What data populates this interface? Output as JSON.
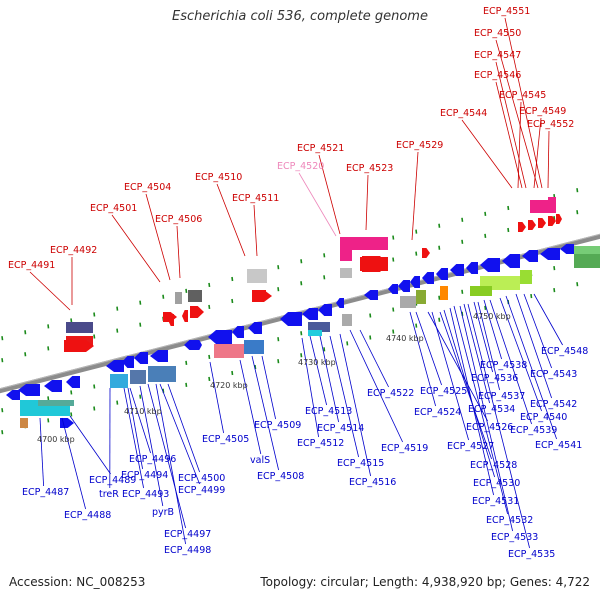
{
  "title": "Escherichia coli 536, complete genome",
  "footer": {
    "accession": "Accession: NC_008253",
    "stats": "Topology: circular; Length: 4,938,920 bp; Genes: 4,722"
  },
  "colors": {
    "backbone": "#8c8c8c",
    "upper_label": "#cc0000",
    "upper_label_alt": "#ee88bb",
    "lower_label": "#0000cc",
    "tick": "#1a8a1a"
  },
  "scale_labels": [
    "4700 kbp",
    "4710 kbp",
    "4720 kbp",
    "4730 kbp",
    "4740 kbp",
    "4750 kbp"
  ],
  "upper_labels": [
    {
      "text": "ECP_4491"
    },
    {
      "text": "ECP_4492"
    },
    {
      "text": "ECP_4501"
    },
    {
      "text": "ECP_4504"
    },
    {
      "text": "ECP_4506"
    },
    {
      "text": "ECP_4510"
    },
    {
      "text": "ECP_4511"
    },
    {
      "text": "ECP_4520",
      "alt": true
    },
    {
      "text": "ECP_4521"
    },
    {
      "text": "ECP_4523"
    },
    {
      "text": "ECP_4529"
    },
    {
      "text": "ECP_4544"
    },
    {
      "text": "ECP_4545"
    },
    {
      "text": "ECP_4546"
    },
    {
      "text": "ECP_4547"
    },
    {
      "text": "ECP_4549"
    },
    {
      "text": "ECP_4550"
    },
    {
      "text": "ECP_4551"
    },
    {
      "text": "ECP_4552"
    }
  ],
  "lower_labels": [
    {
      "text": "ECP_4487"
    },
    {
      "text": "ECP_4488"
    },
    {
      "text": "ECP_4489"
    },
    {
      "text": "treR"
    },
    {
      "text": "ECP_4493"
    },
    {
      "text": "ECP_4494"
    },
    {
      "text": "ECP_4496"
    },
    {
      "text": "pyrB"
    },
    {
      "text": "ECP_4497"
    },
    {
      "text": "ECP_4498"
    },
    {
      "text": "ECP_4499"
    },
    {
      "text": "ECP_4500"
    },
    {
      "text": "ECP_4505"
    },
    {
      "text": "valS"
    },
    {
      "text": "ECP_4508"
    },
    {
      "text": "ECP_4509"
    },
    {
      "text": "ECP_4512"
    },
    {
      "text": "ECP_4513"
    },
    {
      "text": "ECP_4514"
    },
    {
      "text": "ECP_4515"
    },
    {
      "text": "ECP_4516"
    },
    {
      "text": "ECP_4519"
    },
    {
      "text": "ECP_4522"
    },
    {
      "text": "ECP_4524"
    },
    {
      "text": "ECP_4525"
    },
    {
      "text": "ECP_4526"
    },
    {
      "text": "ECP_4527"
    },
    {
      "text": "ECP_4528"
    },
    {
      "text": "ECP_4530"
    },
    {
      "text": "ECP_4531"
    },
    {
      "text": "ECP_4532"
    },
    {
      "text": "ECP_4533"
    },
    {
      "text": "ECP_4534"
    },
    {
      "text": "ECP_4535"
    },
    {
      "text": "ECP_4536"
    },
    {
      "text": "ECP_4537"
    },
    {
      "text": "ECP_4538"
    },
    {
      "text": "ECP_4539"
    },
    {
      "text": "ECP_4540"
    },
    {
      "text": "ECP_4541"
    },
    {
      "text": "ECP_4542"
    },
    {
      "text": "ECP_4543"
    },
    {
      "text": "ECP_4548"
    }
  ]
}
